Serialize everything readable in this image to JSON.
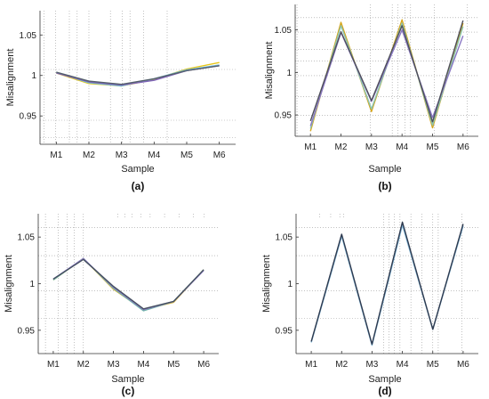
{
  "chart_data": [
    {
      "type": "line",
      "panel_label": "(a)",
      "title": "",
      "xlabel": "Sample",
      "ylabel": "Misalignment",
      "categories": [
        "M1",
        "M2",
        "M3",
        "M4",
        "M5",
        "M6"
      ],
      "yticks": [
        "0.95",
        "1",
        "1.05"
      ],
      "ylim": [
        0.915,
        1.08
      ],
      "grid": "irregular dotted",
      "series": [
        {
          "color": "#e6c619",
          "values": [
            1.003,
            0.99,
            0.987,
            0.995,
            1.008,
            1.016
          ]
        },
        {
          "color": "#74c0d8",
          "values": [
            1.004,
            0.991,
            0.987,
            0.996,
            1.007,
            1.013
          ]
        },
        {
          "color": "#7e63b8",
          "values": [
            1.003,
            0.992,
            0.988,
            0.994,
            1.006,
            1.012
          ]
        },
        {
          "color": "#55606b",
          "values": [
            1.004,
            0.993,
            0.989,
            0.996,
            1.006,
            1.012
          ]
        }
      ]
    },
    {
      "type": "line",
      "panel_label": "(b)",
      "title": "",
      "xlabel": "Sample",
      "ylabel": "Misalignment",
      "categories": [
        "M1",
        "M2",
        "M3",
        "M4",
        "M5",
        "M6"
      ],
      "yticks": [
        "0.95",
        "1",
        "1.05"
      ],
      "ylim": [
        0.925,
        1.08
      ],
      "grid": "irregular dotted",
      "series": [
        {
          "color": "#d6a51a",
          "values": [
            0.931,
            1.059,
            0.954,
            1.062,
            0.935,
            1.058
          ]
        },
        {
          "color": "#8bc4b0",
          "values": [
            0.934,
            1.055,
            0.957,
            1.058,
            0.938,
            1.054
          ]
        },
        {
          "color": "#8a78c4",
          "values": [
            0.937,
            1.047,
            0.966,
            1.05,
            0.947,
            1.043
          ]
        },
        {
          "color": "#4e4f5a",
          "values": [
            0.943,
            1.048,
            0.967,
            1.055,
            0.942,
            1.061
          ]
        }
      ]
    },
    {
      "type": "line",
      "panel_label": "(c)",
      "title": "",
      "xlabel": "Sample",
      "ylabel": "Misalignment",
      "categories": [
        "M1",
        "M2",
        "M3",
        "M4",
        "M5",
        "M6"
      ],
      "yticks": [
        "0.95",
        "1",
        "1.05"
      ],
      "ylim": [
        0.925,
        1.075
      ],
      "grid": "irregular dotted",
      "series": [
        {
          "color": "#d9b43c",
          "values": [
            1.004,
            1.027,
            0.994,
            0.972,
            0.98,
            1.015
          ]
        },
        {
          "color": "#6fb8a8",
          "values": [
            1.004,
            1.027,
            0.995,
            0.971,
            0.981,
            1.015
          ]
        },
        {
          "color": "#8c7cc4",
          "values": [
            1.005,
            1.027,
            0.996,
            0.972,
            0.981,
            1.014
          ]
        },
        {
          "color": "#45505f",
          "values": [
            1.005,
            1.026,
            0.997,
            0.973,
            0.981,
            1.015
          ]
        }
      ]
    },
    {
      "type": "line",
      "panel_label": "(d)",
      "title": "",
      "xlabel": "Sample",
      "ylabel": "Misalignment",
      "categories": [
        "M1",
        "M2",
        "M3",
        "M4",
        "M5",
        "M6"
      ],
      "yticks": [
        "0.95",
        "1",
        "1.05"
      ],
      "ylim": [
        0.925,
        1.075
      ],
      "grid": "irregular dotted",
      "series": [
        {
          "color": "#7fb6d8",
          "values": [
            0.937,
            1.051,
            0.934,
            1.063,
            0.951,
            1.062
          ]
        },
        {
          "color": "#2e3a4f",
          "values": [
            0.938,
            1.053,
            0.935,
            1.066,
            0.951,
            1.064
          ]
        }
      ]
    }
  ]
}
